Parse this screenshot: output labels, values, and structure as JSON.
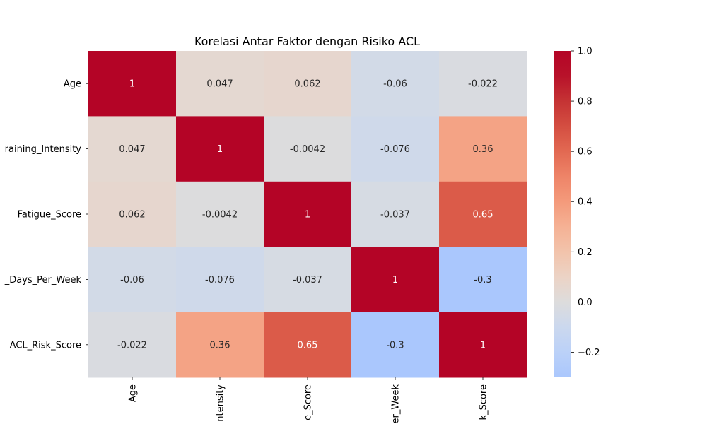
{
  "chart_data": {
    "type": "heatmap",
    "title": "Korelasi Antar Faktor dengan Risiko ACL",
    "xlabel": "",
    "ylabel": "",
    "rows": [
      "Age",
      "Training_Intensity",
      "Fatigue_Score",
      "Recovery_Days_Per_Week",
      "ACL_Risk_Score"
    ],
    "columns": [
      "Age",
      "Training_Intensity",
      "Fatigue_Score",
      "Recovery_Days_Per_Week",
      "ACL_Risk_Score"
    ],
    "row_tick_labels_visible": [
      "Age",
      "raining_Intensity",
      "Fatigue_Score",
      "_Days_Per_Week",
      "ACL_Risk_Score"
    ],
    "column_tick_labels_visible": [
      "Age",
      "ntensity",
      "e_Score",
      "er_Week",
      "k_Score"
    ],
    "values": [
      [
        1,
        0.047,
        0.062,
        -0.06,
        -0.022
      ],
      [
        0.047,
        1,
        -0.0042,
        -0.076,
        0.36
      ],
      [
        0.062,
        -0.0042,
        1,
        -0.037,
        0.65
      ],
      [
        -0.06,
        -0.076,
        -0.037,
        1,
        -0.3
      ],
      [
        -0.022,
        0.36,
        0.65,
        -0.3,
        1
      ]
    ],
    "annotations": [
      [
        "1",
        "0.047",
        "0.062",
        "-0.06",
        "-0.022"
      ],
      [
        "0.047",
        "1",
        "-0.0042",
        "-0.076",
        "0.36"
      ],
      [
        "0.062",
        "-0.0042",
        "1",
        "-0.037",
        "0.65"
      ],
      [
        "-0.06",
        "-0.076",
        "-0.037",
        "1",
        "-0.3"
      ],
      [
        "-0.022",
        "0.36",
        "0.65",
        "-0.3",
        "1"
      ]
    ],
    "colormap": "coolwarm",
    "colorbar": {
      "range": [
        -0.3,
        1.0
      ],
      "ticks": [
        -0.2,
        0.0,
        0.2,
        0.4,
        0.6,
        0.8,
        1.0
      ],
      "tick_labels": [
        "−0.2",
        "0.0",
        "0.2",
        "0.4",
        "0.6",
        "0.8",
        "1.0"
      ],
      "placement": "right"
    },
    "grid": false,
    "legend": "none"
  }
}
